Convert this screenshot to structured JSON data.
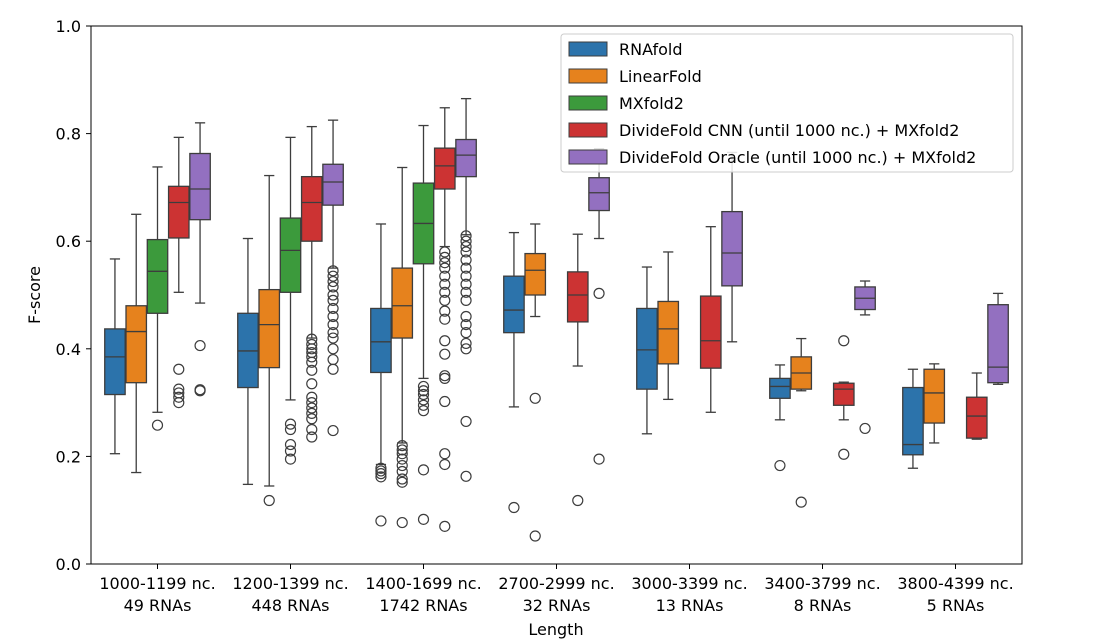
{
  "chart_data": {
    "type": "box",
    "xlabel": "Length",
    "ylabel": "F-score",
    "ylim": [
      0.0,
      1.0
    ],
    "yticks": [
      "0.0",
      "0.2",
      "0.4",
      "0.6",
      "0.8",
      "1.0"
    ],
    "grid": false,
    "legend_position": "top-right",
    "categories": [
      {
        "line1": "1000-1199 nc.",
        "line2": "49 RNAs"
      },
      {
        "line1": "1200-1399 nc.",
        "line2": "448 RNAs"
      },
      {
        "line1": "1400-1699 nc.",
        "line2": "1742 RNAs"
      },
      {
        "line1": "2700-2999 nc.",
        "line2": "32 RNAs"
      },
      {
        "line1": "3000-3399 nc.",
        "line2": "13 RNAs"
      },
      {
        "line1": "3400-3799 nc.",
        "line2": "8 RNAs"
      },
      {
        "line1": "3800-4399 nc.",
        "line2": "5 RNAs"
      }
    ],
    "series": [
      {
        "name": "RNAfold",
        "color": "#2c73ab",
        "boxes": [
          {
            "whislo": 0.205,
            "q1": 0.315,
            "med": 0.385,
            "q3": 0.437,
            "whishi": 0.567,
            "fliers": []
          },
          {
            "whislo": 0.148,
            "q1": 0.328,
            "med": 0.396,
            "q3": 0.466,
            "whishi": 0.605,
            "fliers": []
          },
          {
            "whislo": 0.185,
            "q1": 0.356,
            "med": 0.413,
            "q3": 0.475,
            "whishi": 0.632,
            "fliers": [
              0.08,
              0.162,
              0.168,
              0.173,
              0.178
            ]
          },
          {
            "whislo": 0.292,
            "q1": 0.43,
            "med": 0.472,
            "q3": 0.535,
            "whishi": 0.616,
            "fliers": [
              0.105
            ]
          },
          {
            "whislo": 0.242,
            "q1": 0.325,
            "med": 0.398,
            "q3": 0.475,
            "whishi": 0.552,
            "fliers": []
          },
          {
            "whislo": 0.268,
            "q1": 0.308,
            "med": 0.33,
            "q3": 0.345,
            "whishi": 0.37,
            "fliers": [
              0.183
            ]
          },
          {
            "whislo": 0.178,
            "q1": 0.203,
            "med": 0.222,
            "q3": 0.328,
            "whishi": 0.362,
            "fliers": []
          }
        ]
      },
      {
        "name": "LinearFold",
        "color": "#e6821d",
        "boxes": [
          {
            "whislo": 0.17,
            "q1": 0.337,
            "med": 0.432,
            "q3": 0.48,
            "whishi": 0.65,
            "fliers": []
          },
          {
            "whislo": 0.145,
            "q1": 0.365,
            "med": 0.445,
            "q3": 0.51,
            "whishi": 0.722,
            "fliers": [
              0.118
            ]
          },
          {
            "whislo": 0.225,
            "q1": 0.42,
            "med": 0.48,
            "q3": 0.55,
            "whishi": 0.737,
            "fliers": [
              0.077,
              0.152,
              0.158,
              0.172,
              0.183,
              0.195,
              0.205,
              0.212,
              0.22
            ]
          },
          {
            "whislo": 0.46,
            "q1": 0.5,
            "med": 0.546,
            "q3": 0.577,
            "whishi": 0.632,
            "fliers": [
              0.308,
              0.052
            ]
          },
          {
            "whislo": 0.306,
            "q1": 0.372,
            "med": 0.437,
            "q3": 0.488,
            "whishi": 0.58,
            "fliers": []
          },
          {
            "whislo": 0.322,
            "q1": 0.325,
            "med": 0.355,
            "q3": 0.385,
            "whishi": 0.419,
            "fliers": [
              0.115
            ]
          },
          {
            "whislo": 0.225,
            "q1": 0.262,
            "med": 0.318,
            "q3": 0.362,
            "whishi": 0.372,
            "fliers": []
          }
        ]
      },
      {
        "name": "MXfold2",
        "color": "#3c9a3c",
        "boxes": [
          {
            "whislo": 0.282,
            "q1": 0.466,
            "med": 0.544,
            "q3": 0.603,
            "whishi": 0.738,
            "fliers": [
              0.258
            ]
          },
          {
            "whislo": 0.305,
            "q1": 0.505,
            "med": 0.583,
            "q3": 0.643,
            "whishi": 0.793,
            "fliers": [
              0.195,
              0.21,
              0.222,
              0.25,
              0.26
            ]
          },
          {
            "whislo": 0.345,
            "q1": 0.558,
            "med": 0.633,
            "q3": 0.708,
            "whishi": 0.815,
            "fliers": [
              0.083,
              0.175,
              0.285,
              0.295,
              0.305,
              0.315,
              0.322,
              0.33
            ]
          },
          null,
          null,
          null,
          null
        ]
      },
      {
        "name": "DivideFold CNN (until 1000 nc.) + MXfold2",
        "color": "#cc3333",
        "boxes": [
          {
            "whislo": 0.505,
            "q1": 0.606,
            "med": 0.672,
            "q3": 0.702,
            "whishi": 0.793,
            "fliers": [
              0.3,
              0.31,
              0.318,
              0.325,
              0.362
            ]
          },
          {
            "whislo": 0.42,
            "q1": 0.6,
            "med": 0.672,
            "q3": 0.72,
            "whishi": 0.813,
            "fliers": [
              0.236,
              0.25,
              0.27,
              0.28,
              0.29,
              0.3,
              0.31,
              0.335,
              0.36,
              0.375,
              0.385,
              0.393,
              0.4,
              0.408,
              0.418
            ]
          },
          {
            "whislo": 0.59,
            "q1": 0.697,
            "med": 0.74,
            "q3": 0.773,
            "whishi": 0.848,
            "fliers": [
              0.07,
              0.185,
              0.205,
              0.302,
              0.345,
              0.35,
              0.39,
              0.415,
              0.455,
              0.47,
              0.49,
              0.505,
              0.52,
              0.535,
              0.55,
              0.56,
              0.57,
              0.58
            ]
          },
          {
            "whislo": 0.368,
            "q1": 0.45,
            "med": 0.5,
            "q3": 0.543,
            "whishi": 0.613,
            "fliers": [
              0.118
            ]
          },
          {
            "whislo": 0.282,
            "q1": 0.364,
            "med": 0.415,
            "q3": 0.498,
            "whishi": 0.627,
            "fliers": []
          },
          {
            "whislo": 0.268,
            "q1": 0.295,
            "med": 0.325,
            "q3": 0.336,
            "whishi": 0.338,
            "fliers": [
              0.415,
              0.204
            ]
          },
          {
            "whislo": 0.232,
            "q1": 0.234,
            "med": 0.275,
            "q3": 0.31,
            "whishi": 0.355,
            "fliers": []
          }
        ]
      },
      {
        "name": "DivideFold Oracle (until 1000 nc.) + MXfold2",
        "color": "#9370c0",
        "boxes": [
          {
            "whislo": 0.485,
            "q1": 0.64,
            "med": 0.697,
            "q3": 0.763,
            "whishi": 0.82,
            "fliers": [
              0.322,
              0.324,
              0.406
            ]
          },
          {
            "whislo": 0.55,
            "q1": 0.667,
            "med": 0.71,
            "q3": 0.743,
            "whishi": 0.825,
            "fliers": [
              0.248,
              0.362,
              0.38,
              0.4,
              0.42,
              0.43,
              0.445,
              0.46,
              0.475,
              0.49,
              0.5,
              0.515,
              0.525,
              0.535,
              0.545
            ]
          },
          {
            "whislo": 0.612,
            "q1": 0.72,
            "med": 0.76,
            "q3": 0.789,
            "whishi": 0.865,
            "fliers": [
              0.163,
              0.265,
              0.4,
              0.41,
              0.43,
              0.445,
              0.46,
              0.49,
              0.505,
              0.52,
              0.535,
              0.55,
              0.565,
              0.58,
              0.59,
              0.6,
              0.61
            ]
          },
          {
            "whislo": 0.605,
            "q1": 0.657,
            "med": 0.69,
            "q3": 0.718,
            "whishi": 0.772,
            "fliers": [
              0.503,
              0.195
            ]
          },
          {
            "whislo": 0.413,
            "q1": 0.517,
            "med": 0.578,
            "q3": 0.655,
            "whishi": 0.765,
            "fliers": []
          },
          {
            "whislo": 0.463,
            "q1": 0.473,
            "med": 0.494,
            "q3": 0.515,
            "whishi": 0.526,
            "fliers": [
              0.252
            ]
          },
          {
            "whislo": 0.334,
            "q1": 0.337,
            "med": 0.366,
            "q3": 0.482,
            "whishi": 0.503,
            "fliers": []
          }
        ]
      }
    ]
  }
}
